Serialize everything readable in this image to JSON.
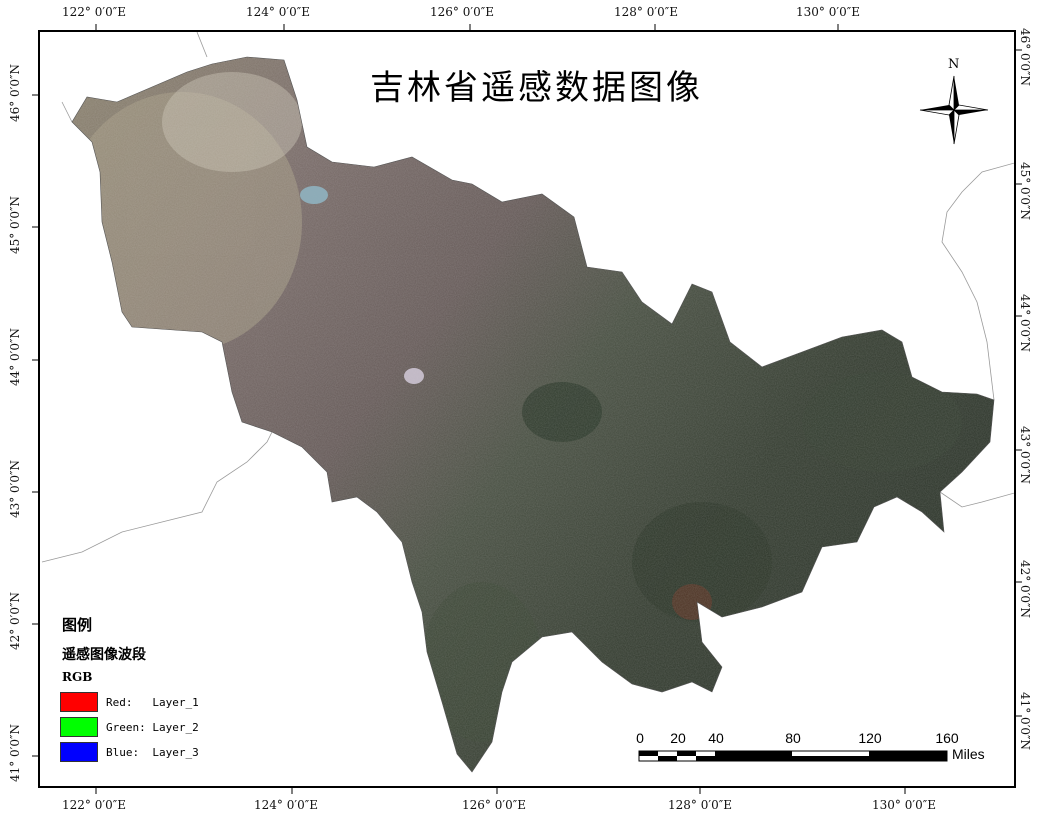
{
  "map": {
    "title": "吉林省遥感数据图像",
    "north_label": "N",
    "graticule": {
      "top_lon": [
        "122° 0′0″E",
        "124° 0′0″E",
        "126° 0′0″E",
        "128° 0′0″E",
        "130° 0′0″E"
      ],
      "bottom_lon": [
        "122° 0′0″E",
        "124° 0′0″E",
        "126° 0′0″E",
        "128° 0′0″E",
        "130° 0′0″E"
      ],
      "left_lat": [
        "46° 0′0″N",
        "45° 0′0″N",
        "44° 0′0″N",
        "43° 0′0″N",
        "42° 0′0″N",
        "41° 0′0″N"
      ],
      "right_lat": [
        "46° 0′0″N",
        "45° 0′0″N",
        "44° 0′0″N",
        "43° 0′0″N",
        "42° 0′0″N",
        "41° 0′0″N"
      ]
    },
    "legend": {
      "title": "图例",
      "subtitle": "遥感图像波段",
      "rgb_label": "RGB",
      "items": [
        {
          "label": "Red:   Layer_1",
          "color": "#ff0000"
        },
        {
          "label": "Green: Layer_2",
          "color": "#00ff00"
        },
        {
          "label": "Blue:  Layer_3",
          "color": "#0000ff"
        }
      ]
    },
    "scale": {
      "ticks": [
        "0",
        "20",
        "40",
        "80",
        "120",
        "160"
      ],
      "unit": "Miles"
    }
  }
}
